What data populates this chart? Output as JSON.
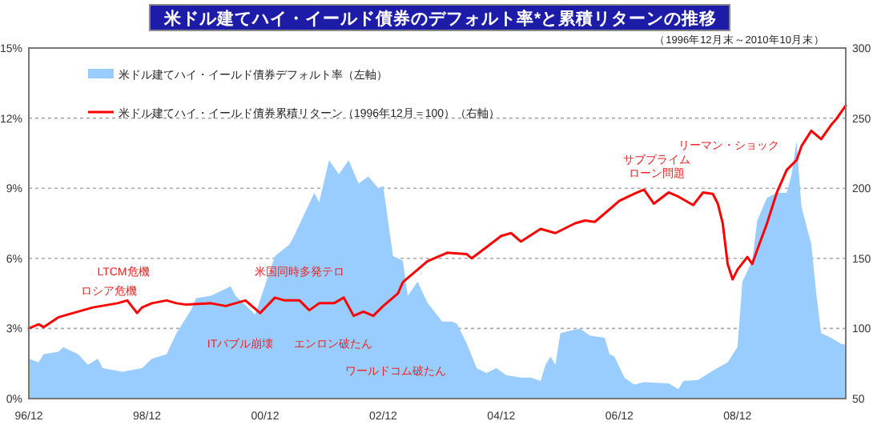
{
  "chart_data": {
    "type": "area",
    "title": "米ドル建てハイ・イールド債券のデフォルト率*と累積リターンの推移",
    "subtitle": "（1996年12月末～2010年10月末）",
    "xlim": [
      "1996-12",
      "2010-10"
    ],
    "xticks": [
      {
        "value": "1996-12",
        "label": "96/12"
      },
      {
        "value": "1998-12",
        "label": "98/12"
      },
      {
        "value": "2000-12",
        "label": "00/12"
      },
      {
        "value": "2002-12",
        "label": "02/12"
      },
      {
        "value": "2004-12",
        "label": "04/12"
      },
      {
        "value": "2006-12",
        "label": "06/12"
      },
      {
        "value": "2008-12",
        "label": "08/12"
      }
    ],
    "ylim": [
      0,
      15
    ],
    "yticks": [
      {
        "value": 0,
        "label": "0%"
      },
      {
        "value": 3,
        "label": "3%"
      },
      {
        "value": 6,
        "label": "6%"
      },
      {
        "value": 9,
        "label": "9%"
      },
      {
        "value": 12,
        "label": "12%"
      },
      {
        "value": 15,
        "label": "15%"
      }
    ],
    "y2lim": [
      50,
      300
    ],
    "y2ticks": [
      50,
      100,
      150,
      200,
      250,
      300
    ],
    "grid": "y",
    "legend": "top left",
    "series": [
      {
        "name": "米ドル建てハイ・イールド債券デフォルト率（左軸）",
        "color": "#99ccff",
        "x": [
          "1996-12",
          "1997-02",
          "1997-03",
          "1997-06",
          "1997-07",
          "1997-10",
          "1997-12",
          "1998-02",
          "1998-03",
          "1998-07",
          "1998-11",
          "1999-01",
          "1999-04",
          "1999-06",
          "1999-09",
          "1999-10",
          "2000-01",
          "2000-03",
          "2000-05",
          "2000-06",
          "2000-09",
          "2000-10",
          "2001-02",
          "2001-05",
          "2001-06",
          "2001-08",
          "2001-10",
          "2001-11",
          "2002-01",
          "2002-03",
          "2002-05",
          "2002-07",
          "2002-09",
          "2002-11",
          "2002-12",
          "2003-02",
          "2003-04",
          "2003-05",
          "2003-07",
          "2003-09",
          "2003-12",
          "2004-02",
          "2004-03",
          "2004-05",
          "2004-07",
          "2004-09",
          "2004-11",
          "2005-01",
          "2005-04",
          "2005-06",
          "2005-08",
          "2005-09",
          "2005-10",
          "2005-11",
          "2005-12",
          "2006-02",
          "2006-04",
          "2006-06",
          "2006-09",
          "2006-10",
          "2006-11",
          "2007-01",
          "2007-03",
          "2007-05",
          "2007-10",
          "2007-12",
          "2008-01",
          "2008-04",
          "2008-07",
          "2008-10",
          "2008-12",
          "2009-01",
          "2009-03",
          "2009-04",
          "2009-06",
          "2009-08",
          "2009-10",
          "2009-11",
          "2009-12",
          "2010-01",
          "2010-03",
          "2010-04",
          "2010-05",
          "2010-07",
          "2010-09",
          "2010-10"
        ],
        "values": [
          1.7,
          1.55,
          1.9,
          2.0,
          2.2,
          1.9,
          1.45,
          1.7,
          1.3,
          1.15,
          1.3,
          1.7,
          1.9,
          2.8,
          3.8,
          4.3,
          4.4,
          4.6,
          4.8,
          4.4,
          3.8,
          3.6,
          6.1,
          6.6,
          7.0,
          7.9,
          8.8,
          8.4,
          10.2,
          9.6,
          10.2,
          9.2,
          9.5,
          9.0,
          9.1,
          6.1,
          5.9,
          4.4,
          5.0,
          4.1,
          3.3,
          3.3,
          3.2,
          2.35,
          1.3,
          1.1,
          1.3,
          1.0,
          0.9,
          0.9,
          0.75,
          1.45,
          1.8,
          1.45,
          2.8,
          2.9,
          3.0,
          2.7,
          2.6,
          1.9,
          1.8,
          0.9,
          0.6,
          0.7,
          0.65,
          0.4,
          0.75,
          0.8,
          1.2,
          1.55,
          2.2,
          5.0,
          5.9,
          7.6,
          8.6,
          8.8,
          8.8,
          9.6,
          11.0,
          8.2,
          6.6,
          4.5,
          2.8,
          2.6,
          2.35,
          2.3
        ]
      },
      {
        "name": "米ドル建てハイ・イールド債券累積リターン（1996年12月＝100）（右軸）",
        "type": "line",
        "axis": "y2",
        "color": "#ff0000",
        "x": [
          "1996-12",
          "1997-02",
          "1997-03",
          "1997-06",
          "1997-10",
          "1998-01",
          "1998-06",
          "1998-08",
          "1998-10",
          "1998-11",
          "1999-01",
          "1999-04",
          "1999-06",
          "1999-08",
          "2000-01",
          "2000-04",
          "2000-08",
          "2000-11",
          "2001-02",
          "2001-04",
          "2001-07",
          "2001-09",
          "2001-11",
          "2002-02",
          "2002-04",
          "2002-06",
          "2002-08",
          "2002-10",
          "2002-12",
          "2003-03",
          "2003-04",
          "2003-06",
          "2003-09",
          "2004-01",
          "2004-05",
          "2004-06",
          "2004-12",
          "2005-02",
          "2005-04",
          "2005-08",
          "2005-11",
          "2006-03",
          "2006-05",
          "2006-07",
          "2006-12",
          "2007-03",
          "2007-05",
          "2007-07",
          "2007-10",
          "2007-12",
          "2008-03",
          "2008-05",
          "2008-07",
          "2008-08",
          "2008-09",
          "2008-10",
          "2008-11",
          "2008-12",
          "2009-02",
          "2009-03",
          "2009-04",
          "2009-06",
          "2009-08",
          "2009-10",
          "2009-12",
          "2010-01",
          "2010-03",
          "2010-05",
          "2010-07",
          "2010-08",
          "2010-10"
        ],
        "values": [
          100,
          103,
          101,
          108,
          112,
          115,
          118,
          120,
          111,
          115,
          118,
          120,
          118,
          117,
          118,
          116,
          120,
          111,
          122,
          120,
          120,
          113,
          118,
          118,
          122,
          109,
          112,
          109,
          116,
          125,
          133,
          139,
          148,
          154,
          153,
          150,
          166,
          168,
          162,
          171,
          168,
          175,
          177,
          176,
          191,
          196,
          199,
          189,
          197,
          194,
          188,
          197,
          196,
          189,
          175,
          146,
          135,
          142,
          151,
          146,
          156,
          175,
          197,
          213,
          220,
          230,
          241,
          235,
          245,
          249,
          259
        ]
      }
    ],
    "annotations": [
      "LTCM危機",
      "ロシア危機",
      "ITバブル崩壊",
      "米国同時多発テロ",
      "エンロン破たん",
      "ワールドコム破たん",
      "サブプライムローン問題",
      "リーマン・ショック"
    ]
  }
}
